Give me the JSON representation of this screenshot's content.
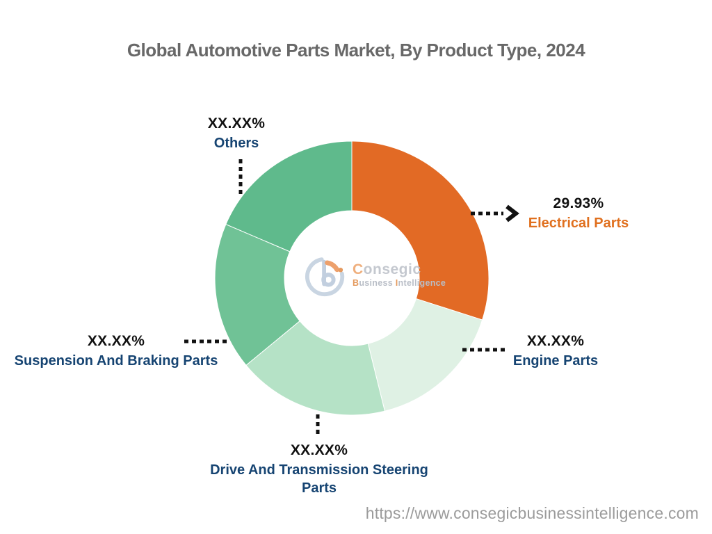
{
  "title": {
    "text": "Global Automotive Parts Market, By Product Type, 2024"
  },
  "footer": {
    "url": "https://www.consegicbusinessintelligence.com"
  },
  "logo": {
    "brand_initial": "C",
    "brand_rest": "onsegic",
    "tagline_b_initial": "B",
    "tagline_b_rest": "usiness",
    "tagline_i_initial": "I",
    "tagline_i_rest": "ntelligence",
    "mark_ring_color": "#c9d5e2",
    "mark_letter_color": "#c2cfdf",
    "mark_accent_color": "#eda06c",
    "mark_dot_color": "#e59a5f",
    "brand_initial_color": "#efaf7d",
    "brand_text_color": "#c4c8cf",
    "tagline_accent_color": "#e49a5e",
    "tagline_text_color": "#b9bec7"
  },
  "colors": {
    "background": "#ffffff",
    "title_text": "#686868",
    "percent_text": "#111111",
    "navy_label": "#164472",
    "orange_label": "#e0701f",
    "connector": "#111111",
    "url_text": "#9b9b9b"
  },
  "chart_data": {
    "type": "pie",
    "subtype": "donut",
    "title": "Global Automotive Parts Market, By Product Type, 2024",
    "units": "%",
    "direction": "clockwise",
    "start_angle_deg": 0,
    "inner_radius_ratio": 0.49,
    "legend": "none (callout labels with dotted leader lines)",
    "segments": [
      {
        "label": "Electrical Parts",
        "display_value": "29.93%",
        "value": 29.93,
        "color": "#e26a25",
        "label_color": "#e0701f"
      },
      {
        "label": "Engine Parts",
        "display_value": "XX.XX%",
        "value": 16.2,
        "color": "#dff1e4",
        "label_color": "#164472"
      },
      {
        "label": "Drive And Transmission Steering Parts",
        "display_value": "XX.XX%",
        "value": 17.9,
        "color": "#b5e2c6",
        "label_color": "#164472"
      },
      {
        "label": "Suspension And Braking Parts",
        "display_value": "XX.XX%",
        "value": 17.4,
        "color": "#70c296",
        "label_color": "#164472"
      },
      {
        "label": "Others",
        "display_value": "XX.XX%",
        "value": 18.57,
        "color": "#5fba8c",
        "label_color": "#164472"
      }
    ]
  }
}
